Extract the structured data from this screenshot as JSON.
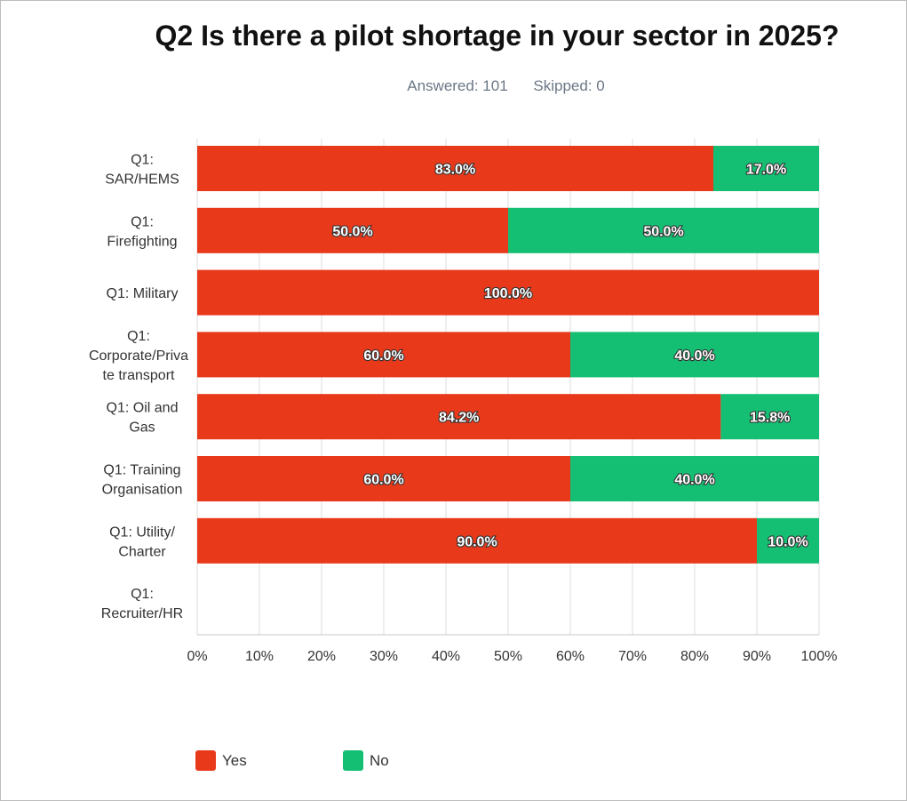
{
  "title": "Q2 Is there a pilot shortage in your sector in 2025?",
  "answered_label": "Answered: 101",
  "skipped_label": "Skipped: 0",
  "colors": {
    "yes": "#e8391b",
    "no": "#14bf73",
    "grid": "#dcdcdc"
  },
  "chart_data": {
    "type": "bar",
    "orientation": "horizontal",
    "stacked": true,
    "title": "Q2 Is there a pilot shortage in your sector in 2025?",
    "categories": [
      [
        "Q1:",
        "SAR/HEMS"
      ],
      [
        "Q1:",
        "Firefighting"
      ],
      [
        "Q1: Military"
      ],
      [
        "Q1:",
        "Corporate/Priva",
        "te transport"
      ],
      [
        "Q1: Oil and",
        "Gas"
      ],
      [
        "Q1: Training",
        "Organisation"
      ],
      [
        "Q1: Utility/",
        "Charter"
      ],
      [
        "Q1:",
        "Recruiter/HR"
      ]
    ],
    "series": [
      {
        "name": "Yes",
        "color": "#e8391b",
        "values": [
          83.0,
          50.0,
          100.0,
          60.0,
          84.2,
          60.0,
          90.0,
          null
        ]
      },
      {
        "name": "No",
        "color": "#14bf73",
        "values": [
          17.0,
          50.0,
          0,
          40.0,
          15.8,
          40.0,
          10.0,
          null
        ]
      }
    ],
    "data_labels": [
      [
        "83.0%",
        "17.0%"
      ],
      [
        "50.0%",
        "50.0%"
      ],
      [
        "100.0%",
        ""
      ],
      [
        "60.0%",
        "40.0%"
      ],
      [
        "84.2%",
        "15.8%"
      ],
      [
        "60.0%",
        "40.0%"
      ],
      [
        "90.0%",
        "10.0%"
      ],
      [
        "",
        ""
      ]
    ],
    "x_ticks": [
      "0%",
      "10%",
      "20%",
      "30%",
      "40%",
      "50%",
      "60%",
      "70%",
      "80%",
      "90%",
      "100%"
    ],
    "xlim": [
      0,
      100
    ],
    "grid": true,
    "legend_position": "bottom-left"
  },
  "legend": [
    {
      "label": "Yes",
      "color": "#e8391b"
    },
    {
      "label": "No",
      "color": "#14bf73"
    }
  ]
}
